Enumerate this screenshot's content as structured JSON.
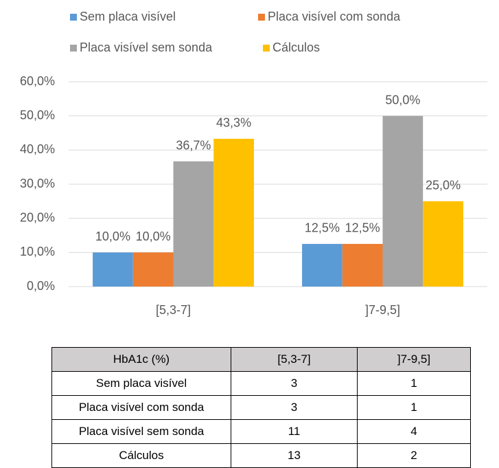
{
  "chart_data": {
    "type": "bar",
    "categories": [
      "[5,3-7]",
      "]7-9,5]"
    ],
    "series": [
      {
        "name": "Sem placa visível",
        "color": "#5b9bd5",
        "values": [
          10.0,
          12.5
        ],
        "value_labels": [
          "10,0%",
          "12,5%"
        ]
      },
      {
        "name": "Placa visível com sonda",
        "color": "#ed7d31",
        "values": [
          10.0,
          12.5
        ],
        "value_labels": [
          "10,0%",
          "12,5%"
        ]
      },
      {
        "name": "Placa visível sem sonda",
        "color": "#a5a5a5",
        "values": [
          36.7,
          50.0
        ],
        "value_labels": [
          "36,7%",
          "50,0%"
        ]
      },
      {
        "name": "Cálculos",
        "color": "#ffc000",
        "values": [
          43.3,
          25.0
        ],
        "value_labels": [
          "43,3%",
          "25,0%"
        ]
      }
    ],
    "ylim": [
      0,
      60
    ],
    "yticks": [
      {
        "value": 0,
        "label": "0,0%"
      },
      {
        "value": 10,
        "label": "10,0%"
      },
      {
        "value": 20,
        "label": "20,0%"
      },
      {
        "value": 30,
        "label": "30,0%"
      },
      {
        "value": 40,
        "label": "40,0%"
      },
      {
        "value": 50,
        "label": "50,0%"
      },
      {
        "value": 60,
        "label": "60,0%"
      }
    ],
    "grid": true,
    "legend": "top"
  },
  "table": {
    "header": [
      "HbA1c (%)",
      "[5,3-7]",
      "]7-9,5]"
    ],
    "rows": [
      [
        "Sem placa visível",
        3,
        1
      ],
      [
        "Placa visível com sonda",
        3,
        1
      ],
      [
        "Placa visível sem sonda",
        11,
        4
      ],
      [
        "Cálculos",
        13,
        2
      ]
    ]
  }
}
